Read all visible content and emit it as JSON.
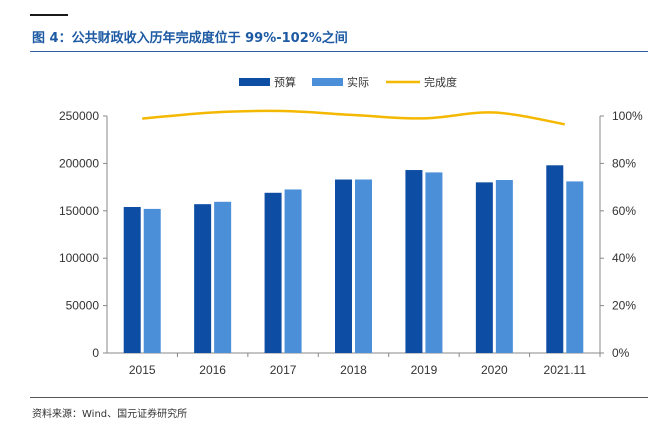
{
  "figure": {
    "title": "图 4：公共财政收入历年完成度位于 99%-102%之间",
    "source": "资料来源：Wind、国元证券研究所"
  },
  "chart_data": {
    "type": "bar",
    "categories": [
      "2015",
      "2016",
      "2017",
      "2018",
      "2019",
      "2020",
      "2021.11"
    ],
    "series": [
      {
        "name": "预算",
        "kind": "bar",
        "color": "#0e4da4",
        "axis": "left",
        "values": [
          154000,
          157000,
          169000,
          183000,
          193000,
          180000,
          198000
        ]
      },
      {
        "name": "实际",
        "kind": "bar",
        "color": "#4a8fd8",
        "axis": "left",
        "values": [
          152000,
          159500,
          172500,
          183000,
          190500,
          182500,
          181000
        ]
      },
      {
        "name": "完成度",
        "kind": "line",
        "color": "#f5b800",
        "axis": "right",
        "values": [
          0.989,
          1.015,
          1.021,
          1.004,
          0.99,
          1.015,
          0.965
        ]
      }
    ],
    "ylim": [
      0,
      250000
    ],
    "yticks": [
      "0",
      "50000",
      "100000",
      "150000",
      "200000",
      "250000"
    ],
    "y2lim": [
      0,
      1.0
    ],
    "y2ticks": [
      "0%",
      "20%",
      "40%",
      "60%",
      "80%",
      "100%"
    ],
    "legend_position": "top-center",
    "grid": false
  }
}
